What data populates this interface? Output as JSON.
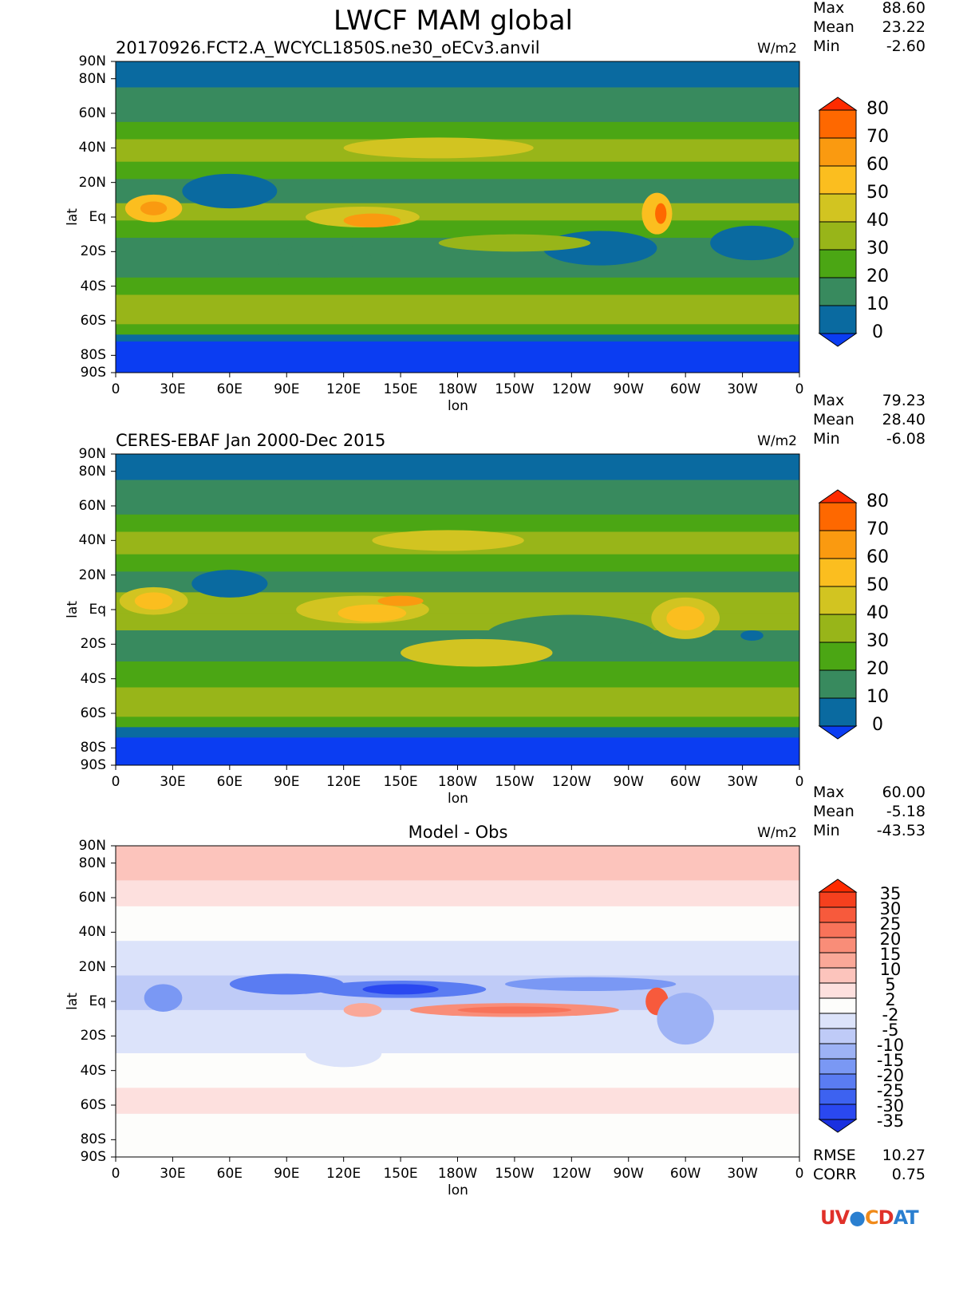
{
  "title": "LWCF MAM global",
  "logo_text": "UV-CDAT",
  "chart_data": [
    {
      "type": "heatmap",
      "subtitle": "20170926.FCT2.A_WCYCL1850S.ne30_oECv3.anvil",
      "units": "W/m2",
      "stats": {
        "Max": "88.60",
        "Mean": "23.22",
        "Min": "-2.60"
      },
      "xlabel": "lon",
      "ylabel": "lat",
      "colorbar": {
        "levels": [
          "0",
          "10",
          "20",
          "30",
          "40",
          "50",
          "60",
          "70",
          "80"
        ],
        "colors": [
          "#0b3df2",
          "#0a6aa0",
          "#388a5e",
          "#4ba614",
          "#98b519",
          "#d2c421",
          "#fbbe1f",
          "#fa9a10",
          "#fe6800",
          "#fe2b00"
        ]
      }
    },
    {
      "type": "heatmap",
      "subtitle": "CERES-EBAF Jan 2000-Dec 2015",
      "units": "W/m2",
      "stats": {
        "Max": "79.23",
        "Mean": "28.40",
        "Min": "-6.08"
      },
      "xlabel": "lon",
      "ylabel": "lat",
      "colorbar": {
        "levels": [
          "0",
          "10",
          "20",
          "30",
          "40",
          "50",
          "60",
          "70",
          "80"
        ],
        "colors": [
          "#0b3df2",
          "#0a6aa0",
          "#388a5e",
          "#4ba614",
          "#98b519",
          "#d2c421",
          "#fbbe1f",
          "#fa9a10",
          "#fe6800",
          "#fe2b00"
        ]
      }
    },
    {
      "type": "heatmap",
      "subtitle": "Model - Obs",
      "units": "W/m2",
      "stats": {
        "Max": "60.00",
        "Mean": "-5.18",
        "Min": "-43.53"
      },
      "extra_stats": {
        "RMSE": "10.27",
        "CORR": "0.75"
      },
      "xlabel": "lon",
      "ylabel": "lat",
      "colorbar": {
        "levels": [
          "-35",
          "-30",
          "-25",
          "-20",
          "-15",
          "-10",
          "-5",
          "-2",
          "2",
          "5",
          "10",
          "15",
          "20",
          "25",
          "30",
          "35"
        ],
        "colors": [
          "#1a30e0",
          "#2a48f0",
          "#3d62f0",
          "#5a7cf2",
          "#7a98f4",
          "#9db2f5",
          "#bfcbf7",
          "#dce3fa",
          "#fdfdfb",
          "#fde0de",
          "#fcc4bc",
          "#faa898",
          "#f98d78",
          "#f8735a",
          "#f75a3c",
          "#f5401e",
          "#fe2b00"
        ]
      }
    }
  ],
  "lat_ticks": [
    "90N",
    "80N",
    "60N",
    "40N",
    "20N",
    "Eq",
    "20S",
    "40S",
    "60S",
    "80S",
    "90S"
  ],
  "lon_ticks": [
    "0",
    "30E",
    "60E",
    "90E",
    "120E",
    "150E",
    "180W",
    "150W",
    "120W",
    "90W",
    "60W",
    "30W",
    "0"
  ]
}
